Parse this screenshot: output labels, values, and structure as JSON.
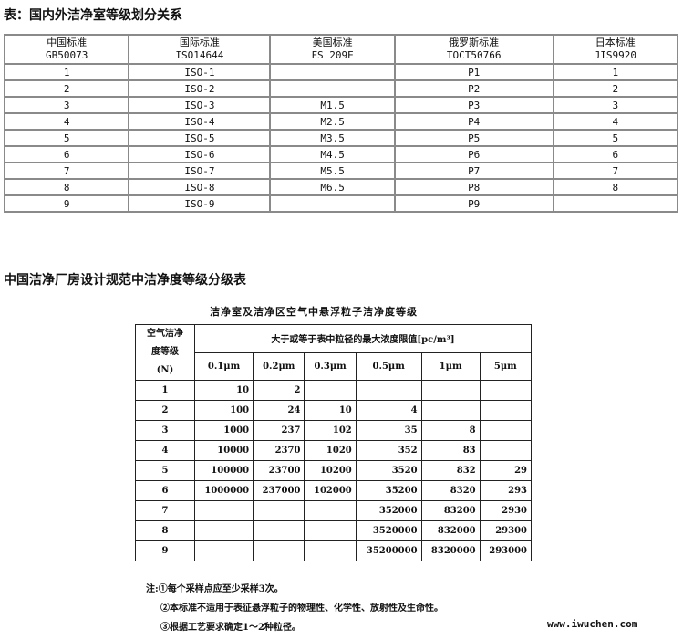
{
  "title1": "表：国内外洁净室等级划分关系",
  "table1": {
    "headers": [
      [
        "中国标准",
        "GB50073"
      ],
      [
        "国际标准",
        "ISO14644"
      ],
      [
        "美国标准",
        "FS 209E"
      ],
      [
        "俄罗斯标准",
        "TOCT50766"
      ],
      [
        "日本标准",
        "JIS9920"
      ]
    ],
    "rows": [
      [
        "1",
        "ISO-1",
        "",
        "P1",
        "1"
      ],
      [
        "2",
        "ISO-2",
        "",
        "P2",
        "2"
      ],
      [
        "3",
        "ISO-3",
        "M1.5",
        "P3",
        "3"
      ],
      [
        "4",
        "ISO-4",
        "M2.5",
        "P4",
        "4"
      ],
      [
        "5",
        "ISO-5",
        "M3.5",
        "P5",
        "5"
      ],
      [
        "6",
        "ISO-6",
        "M4.5",
        "P6",
        "6"
      ],
      [
        "7",
        "ISO-7",
        "M5.5",
        "P7",
        "7"
      ],
      [
        "8",
        "ISO-8",
        "M6.5",
        "P8",
        "8"
      ],
      [
        "9",
        "ISO-9",
        "",
        "P9",
        ""
      ]
    ]
  },
  "title2": "中国洁净厂房设计规范中洁净度等级分级表",
  "table2": {
    "caption": "洁净室及洁净区空气中悬浮粒子洁净度等级",
    "class_header": [
      "空气洁净",
      "度等级",
      "(N)"
    ],
    "limit_header": "大于或等于表中粒径的最大浓度限值[pc/m³]",
    "sizes": [
      "0.1μm",
      "0.2μm",
      "0.3μm",
      "0.5μm",
      "1μm",
      "5μm"
    ],
    "rows": [
      [
        "1",
        "10",
        "2",
        "",
        "",
        "",
        ""
      ],
      [
        "2",
        "100",
        "24",
        "10",
        "4",
        "",
        ""
      ],
      [
        "3",
        "1000",
        "237",
        "102",
        "35",
        "8",
        ""
      ],
      [
        "4",
        "10000",
        "2370",
        "1020",
        "352",
        "83",
        ""
      ],
      [
        "5",
        "100000",
        "23700",
        "10200",
        "3520",
        "832",
        "29"
      ],
      [
        "6",
        "1000000",
        "237000",
        "102000",
        "35200",
        "8320",
        "293"
      ],
      [
        "7",
        "",
        "",
        "",
        "352000",
        "83200",
        "2930"
      ],
      [
        "8",
        "",
        "",
        "",
        "3520000",
        "832000",
        "29300"
      ],
      [
        "9",
        "",
        "",
        "",
        "35200000",
        "8320000",
        "293000"
      ]
    ],
    "notes": [
      "注:①每个采样点应至少采样3次。",
      "②本标准不适用于表征悬浮粒子的物理性、化学性、放射性及生命性。",
      "③根据工艺要求确定1～2种粒径。"
    ]
  },
  "watermark": "www.iwuchen.com"
}
